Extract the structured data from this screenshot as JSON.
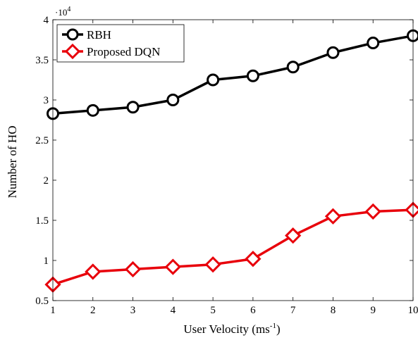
{
  "chart_data": {
    "type": "line",
    "title": "",
    "xlabel_main": "User Velocity (ms",
    "xlabel_sup": "-1",
    "xlabel_close": ")",
    "ylabel": "Number of HO",
    "y_scale_base": "·10",
    "y_scale_exp": "4",
    "x": [
      1,
      2,
      3,
      4,
      5,
      6,
      7,
      8,
      9,
      10
    ],
    "xlim": [
      1,
      10
    ],
    "ylim": [
      0.5,
      4
    ],
    "xticks": [
      "1",
      "2",
      "3",
      "4",
      "5",
      "6",
      "7",
      "8",
      "9",
      "10"
    ],
    "yticks": [
      "0.5",
      "1",
      "1.5",
      "2",
      "2.5",
      "3",
      "3.5",
      "4"
    ],
    "ytick_values": [
      0.5,
      1,
      1.5,
      2,
      2.5,
      3,
      3.5,
      4
    ],
    "grid": false,
    "legend_position": "top-left",
    "series": [
      {
        "name": "RBH",
        "marker": "circle",
        "color": "#000000",
        "values": [
          2.83,
          2.87,
          2.91,
          3.0,
          3.25,
          3.3,
          3.41,
          3.59,
          3.71,
          3.8
        ]
      },
      {
        "name": "Proposed DQN",
        "marker": "diamond",
        "color": "#e8000b",
        "values": [
          0.7,
          0.86,
          0.89,
          0.92,
          0.95,
          1.02,
          1.31,
          1.55,
          1.61,
          1.63
        ]
      }
    ]
  }
}
